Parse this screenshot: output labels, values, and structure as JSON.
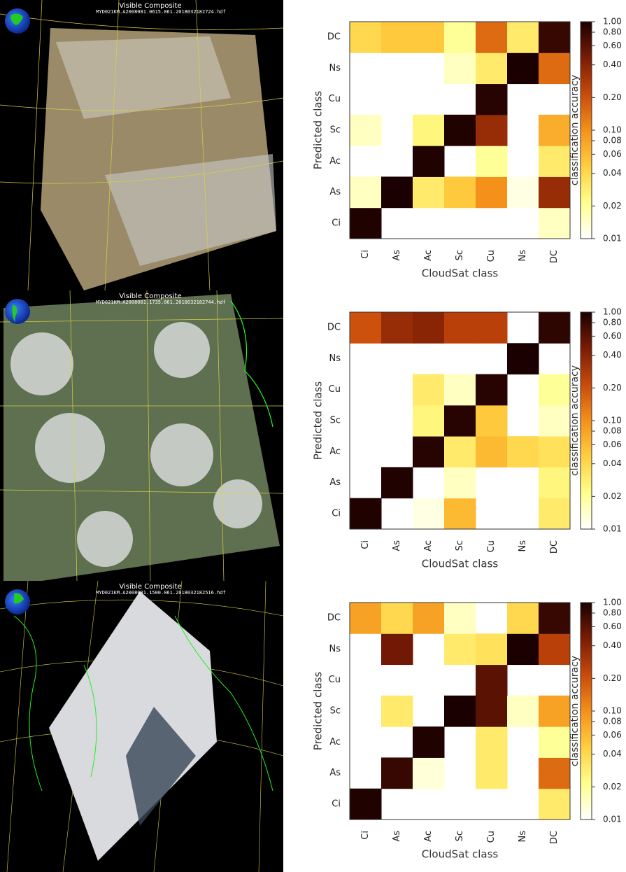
{
  "images": [
    {
      "title": "Visible Composite",
      "filename": "MYD021KM.A2008081.0615.061.2018032182724.hdf"
    },
    {
      "title": "Visible Composite",
      "filename": "MYD021KM.A2008081.1735.061.2018032182744.hdf"
    },
    {
      "title": "Visible Composite",
      "filename": "MYD021KM.A2008081.1500.061.2018032182516.hdf"
    }
  ],
  "chart_data": [
    {
      "type": "heatmap",
      "x_label": "CloudSat class",
      "y_label": "Predicted class",
      "colorbar_label": "classification accuracy",
      "categories": [
        "Ci",
        "As",
        "Ac",
        "Sc",
        "Cu",
        "Ns",
        "DC"
      ],
      "y_categories": [
        "Ci",
        "As",
        "Ac",
        "Sc",
        "Cu",
        "Ns",
        "DC"
      ],
      "values": [
        [
          0.95,
          null,
          null,
          null,
          null,
          null,
          0.015
        ],
        [
          0.015,
          1.0,
          0.03,
          0.05,
          0.1,
          0.012,
          0.35
        ],
        [
          null,
          null,
          0.95,
          null,
          0.02,
          null,
          0.03
        ],
        [
          0.015,
          null,
          0.025,
          0.95,
          0.35,
          null,
          0.07
        ],
        [
          null,
          null,
          null,
          null,
          0.9,
          null,
          null
        ],
        [
          null,
          null,
          null,
          0.015,
          0.03,
          1.0,
          0.15
        ],
        [
          0.04,
          0.05,
          0.05,
          0.02,
          0.15,
          0.03,
          0.8
        ]
      ],
      "clim": [
        0.01,
        1
      ],
      "log_scale": true,
      "colormap": [
        "#ffffff",
        "#ffff8c",
        "#ffcf40",
        "#f5901a",
        "#c84a0a",
        "#7a1c04",
        "#1a0000"
      ],
      "cticks": [
        0.01,
        0.02,
        0.04,
        0.06,
        0.08,
        {
          "value": 0.1,
          "label": "0.10"
        },
        {
          "value": 0.2,
          "label": "0.20"
        },
        {
          "value": 0.4,
          "label": "0.40"
        },
        {
          "value": 0.6,
          "label": "0.60"
        },
        {
          "value": 0.8,
          "label": "0.80"
        },
        {
          "value": 1,
          "label": "1.00"
        }
      ]
    },
    {
      "type": "heatmap",
      "x_label": "CloudSat class",
      "y_label": "Predicted class",
      "colorbar_label": "classification accuracy",
      "categories": [
        "Ci",
        "As",
        "Ac",
        "Sc",
        "Cu",
        "Ns",
        "DC"
      ],
      "y_categories": [
        "Ci",
        "As",
        "Ac",
        "Sc",
        "Cu",
        "Ns",
        "DC"
      ],
      "values": [
        [
          0.95,
          null,
          0.012,
          0.06,
          null,
          null,
          0.03
        ],
        [
          null,
          0.95,
          null,
          0.015,
          null,
          null,
          0.025
        ],
        [
          null,
          null,
          0.9,
          0.03,
          0.06,
          0.04,
          0.035
        ],
        [
          null,
          null,
          0.025,
          0.9,
          0.05,
          null,
          0.015
        ],
        [
          null,
          null,
          0.03,
          0.015,
          0.9,
          null,
          0.02
        ],
        [
          null,
          null,
          null,
          null,
          null,
          1.0,
          null
        ],
        [
          0.2,
          0.35,
          0.4,
          0.25,
          0.25,
          null,
          0.85
        ]
      ],
      "clim": [
        0.01,
        1
      ],
      "log_scale": true,
      "colormap": [
        "#ffffff",
        "#ffff8c",
        "#ffcf40",
        "#f5901a",
        "#c84a0a",
        "#7a1c04",
        "#1a0000"
      ],
      "cticks": [
        0.01,
        0.02,
        0.04,
        0.06,
        0.08,
        {
          "value": 0.1,
          "label": "0.10"
        },
        {
          "value": 0.2,
          "label": "0.20"
        },
        {
          "value": 0.4,
          "label": "0.40"
        },
        {
          "value": 0.6,
          "label": "0.60"
        },
        {
          "value": 0.8,
          "label": "0.80"
        },
        {
          "value": 1,
          "label": "1.00"
        }
      ]
    },
    {
      "type": "heatmap",
      "x_label": "CloudSat class",
      "y_label": "Predicted class",
      "colorbar_label": "classification accuracy",
      "categories": [
        "Ci",
        "As",
        "Ac",
        "Sc",
        "Cu",
        "Ns",
        "DC"
      ],
      "y_categories": [
        "Ci",
        "As",
        "Ac",
        "Sc",
        "Cu",
        "Ns",
        "DC"
      ],
      "values": [
        [
          0.95,
          null,
          null,
          null,
          null,
          null,
          0.03
        ],
        [
          null,
          0.8,
          0.013,
          null,
          0.03,
          null,
          0.15
        ],
        [
          null,
          null,
          0.95,
          null,
          0.03,
          null,
          0.02
        ],
        [
          null,
          0.03,
          null,
          1.0,
          0.6,
          0.015,
          0.08
        ],
        [
          null,
          null,
          null,
          null,
          0.6,
          null,
          null
        ],
        [
          null,
          0.5,
          null,
          0.03,
          0.035,
          1.0,
          0.25
        ],
        [
          0.08,
          0.04,
          0.08,
          0.015,
          null,
          0.04,
          0.8
        ]
      ],
      "clim": [
        0.01,
        1
      ],
      "log_scale": true,
      "colormap": [
        "#ffffff",
        "#ffff8c",
        "#ffcf40",
        "#f5901a",
        "#c84a0a",
        "#7a1c04",
        "#1a0000"
      ],
      "cticks": [
        0.01,
        0.02,
        0.04,
        0.06,
        0.08,
        {
          "value": 0.1,
          "label": "0.10"
        },
        {
          "value": 0.2,
          "label": "0.20"
        },
        {
          "value": 0.4,
          "label": "0.40"
        },
        {
          "value": 0.6,
          "label": "0.60"
        },
        {
          "value": 0.8,
          "label": "0.80"
        },
        {
          "value": 1,
          "label": "1.00"
        }
      ]
    }
  ]
}
